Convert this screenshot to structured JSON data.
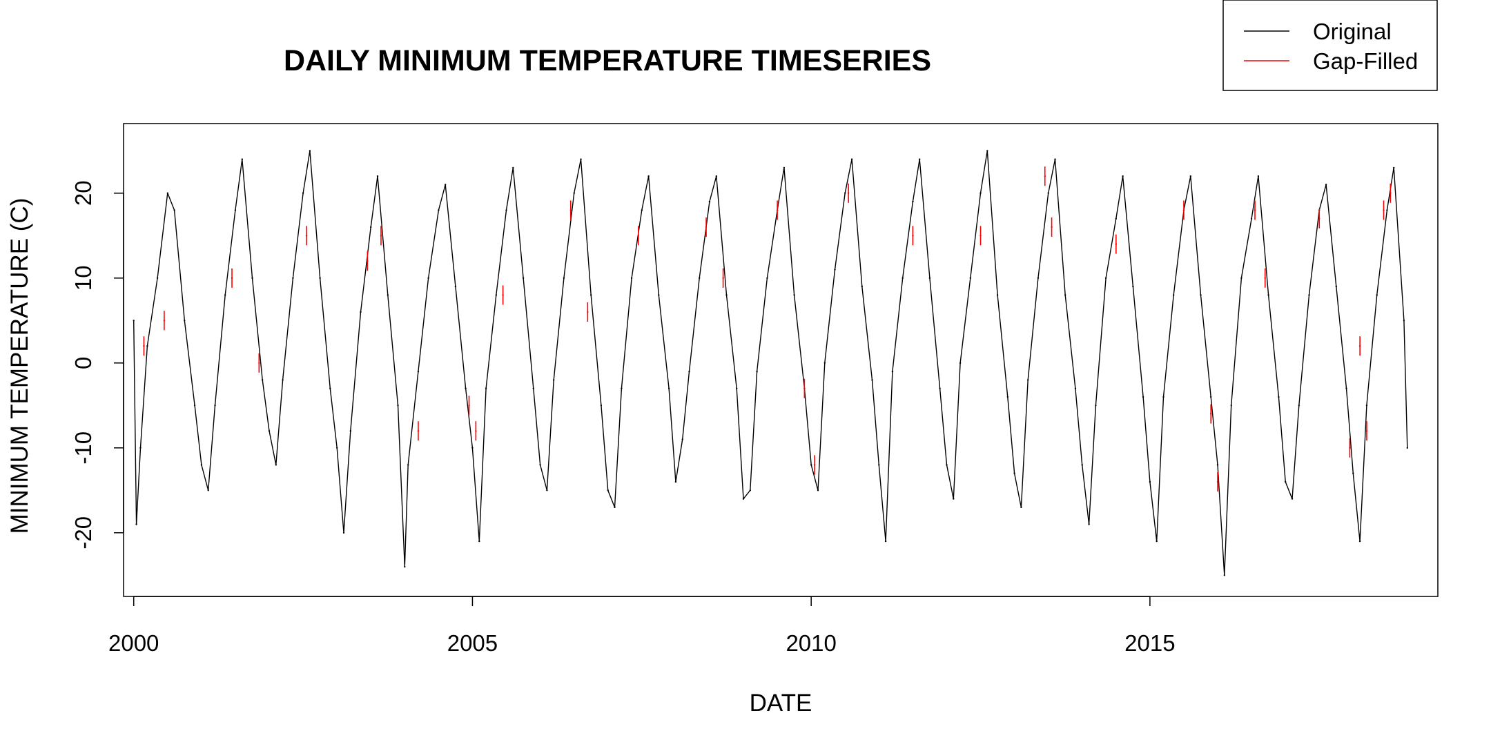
{
  "chart_data": {
    "type": "line",
    "title": "DAILY MINIMUM TEMPERATURE TIMESERIES",
    "xlabel": "DATE",
    "ylabel": "MINIMUM TEMPERATURE (C)",
    "xlim": [
      1999.85,
      2019.25
    ],
    "ylim": [
      -27.5,
      28.2
    ],
    "x_ticks": [
      2000,
      2005,
      2010,
      2015
    ],
    "x_tick_labels": [
      "2000",
      "2005",
      "2010",
      "2015"
    ],
    "y_ticks": [
      -20,
      -10,
      0,
      10,
      20
    ],
    "y_tick_labels": [
      "-20",
      "-10",
      "0",
      "10",
      "20"
    ],
    "grid": false,
    "legend": {
      "position": "top-right",
      "entries": [
        {
          "name": "Original",
          "color": "#000000"
        },
        {
          "name": "Gap-Filled",
          "color": "#ff0000"
        }
      ]
    },
    "series": [
      {
        "name": "Original",
        "color": "#000000",
        "x": [
          2000.0,
          2000.04,
          2000.1,
          2000.2,
          2000.35,
          2000.5,
          2000.6,
          2000.75,
          2000.9,
          2001.0,
          2001.1,
          2001.2,
          2001.35,
          2001.5,
          2001.6,
          2001.75,
          2001.9,
          2002.0,
          2002.1,
          2002.2,
          2002.35,
          2002.5,
          2002.6,
          2002.75,
          2002.9,
          2003.0,
          2003.1,
          2003.2,
          2003.35,
          2003.5,
          2003.6,
          2003.75,
          2003.9,
          2004.0,
          2004.05,
          2004.2,
          2004.35,
          2004.5,
          2004.6,
          2004.75,
          2004.9,
          2005.0,
          2005.1,
          2005.2,
          2005.35,
          2005.5,
          2005.6,
          2005.75,
          2005.9,
          2006.0,
          2006.1,
          2006.2,
          2006.35,
          2006.5,
          2006.6,
          2006.75,
          2006.9,
          2007.0,
          2007.1,
          2007.2,
          2007.35,
          2007.5,
          2007.6,
          2007.75,
          2007.9,
          2008.0,
          2008.1,
          2008.2,
          2008.35,
          2008.5,
          2008.6,
          2008.75,
          2008.9,
          2009.0,
          2009.1,
          2009.2,
          2009.35,
          2009.5,
          2009.6,
          2009.75,
          2009.9,
          2010.0,
          2010.1,
          2010.2,
          2010.35,
          2010.5,
          2010.6,
          2010.75,
          2010.9,
          2011.0,
          2011.1,
          2011.2,
          2011.35,
          2011.5,
          2011.6,
          2011.75,
          2011.9,
          2012.0,
          2012.1,
          2012.2,
          2012.35,
          2012.5,
          2012.6,
          2012.75,
          2012.9,
          2013.0,
          2013.1,
          2013.2,
          2013.35,
          2013.5,
          2013.6,
          2013.75,
          2013.9,
          2014.0,
          2014.1,
          2014.2,
          2014.35,
          2014.5,
          2014.6,
          2014.75,
          2014.9,
          2015.0,
          2015.1,
          2015.2,
          2015.35,
          2015.5,
          2015.6,
          2015.75,
          2015.9,
          2016.0,
          2016.1,
          2016.2,
          2016.35,
          2016.5,
          2016.6,
          2016.75,
          2016.9,
          2017.0,
          2017.1,
          2017.2,
          2017.35,
          2017.5,
          2017.6,
          2017.75,
          2017.9,
          2018.0,
          2018.1,
          2018.2,
          2018.35,
          2018.5,
          2018.6,
          2018.75,
          2018.8
        ],
        "y": [
          5,
          -19,
          -10,
          2,
          10,
          20,
          18,
          5,
          -5,
          -12,
          -15,
          -5,
          8,
          18,
          24,
          10,
          -2,
          -8,
          -12,
          -2,
          10,
          20,
          25,
          10,
          -3,
          -10,
          -20,
          -8,
          6,
          16,
          22,
          8,
          -5,
          -24,
          -12,
          -1,
          10,
          18,
          21,
          9,
          -3,
          -10,
          -21,
          -3,
          8,
          18,
          23,
          10,
          -3,
          -12,
          -15,
          -2,
          10,
          20,
          24,
          8,
          -5,
          -15,
          -17,
          -3,
          10,
          18,
          22,
          8,
          -3,
          -14,
          -9,
          -1,
          10,
          19,
          22,
          8,
          -3,
          -16,
          -15,
          -1,
          10,
          18,
          23,
          8,
          -3,
          -12,
          -15,
          0,
          11,
          20,
          24,
          9,
          -2,
          -12,
          -21,
          -1,
          10,
          19,
          24,
          10,
          -3,
          -12,
          -16,
          0,
          10,
          20,
          25,
          8,
          -4,
          -13,
          -17,
          -2,
          10,
          20,
          24,
          8,
          -3,
          -12,
          -19,
          -5,
          10,
          17,
          22,
          9,
          -4,
          -14,
          -21,
          -4,
          8,
          18,
          22,
          8,
          -4,
          -12,
          -25,
          -5,
          10,
          17,
          22,
          8,
          -4,
          -14,
          -16,
          -5,
          8,
          18,
          21,
          9,
          -3,
          -13,
          -21,
          -5,
          8,
          18,
          23,
          5,
          -10
        ]
      },
      {
        "name": "Gap-Filled",
        "color": "#ff0000",
        "x": [
          2000.15,
          2000.45,
          2001.45,
          2001.85,
          2002.55,
          2003.45,
          2003.65,
          2004.2,
          2004.95,
          2005.05,
          2005.45,
          2006.45,
          2006.7,
          2007.45,
          2008.45,
          2008.7,
          2009.5,
          2009.9,
          2010.05,
          2010.55,
          2011.5,
          2012.5,
          2013.45,
          2013.55,
          2014.5,
          2015.5,
          2015.9,
          2016.0,
          2016.55,
          2016.7,
          2017.5,
          2017.95,
          2018.1,
          2018.2,
          2018.45,
          2018.55
        ],
        "y": [
          2,
          5,
          10,
          0,
          15,
          12,
          15,
          -8,
          -5,
          -8,
          8,
          18,
          6,
          15,
          16,
          10,
          18,
          -3,
          -12,
          20,
          15,
          15,
          22,
          16,
          14,
          18,
          -6,
          -14,
          18,
          10,
          17,
          -10,
          2,
          -8,
          18,
          20
        ]
      }
    ]
  }
}
